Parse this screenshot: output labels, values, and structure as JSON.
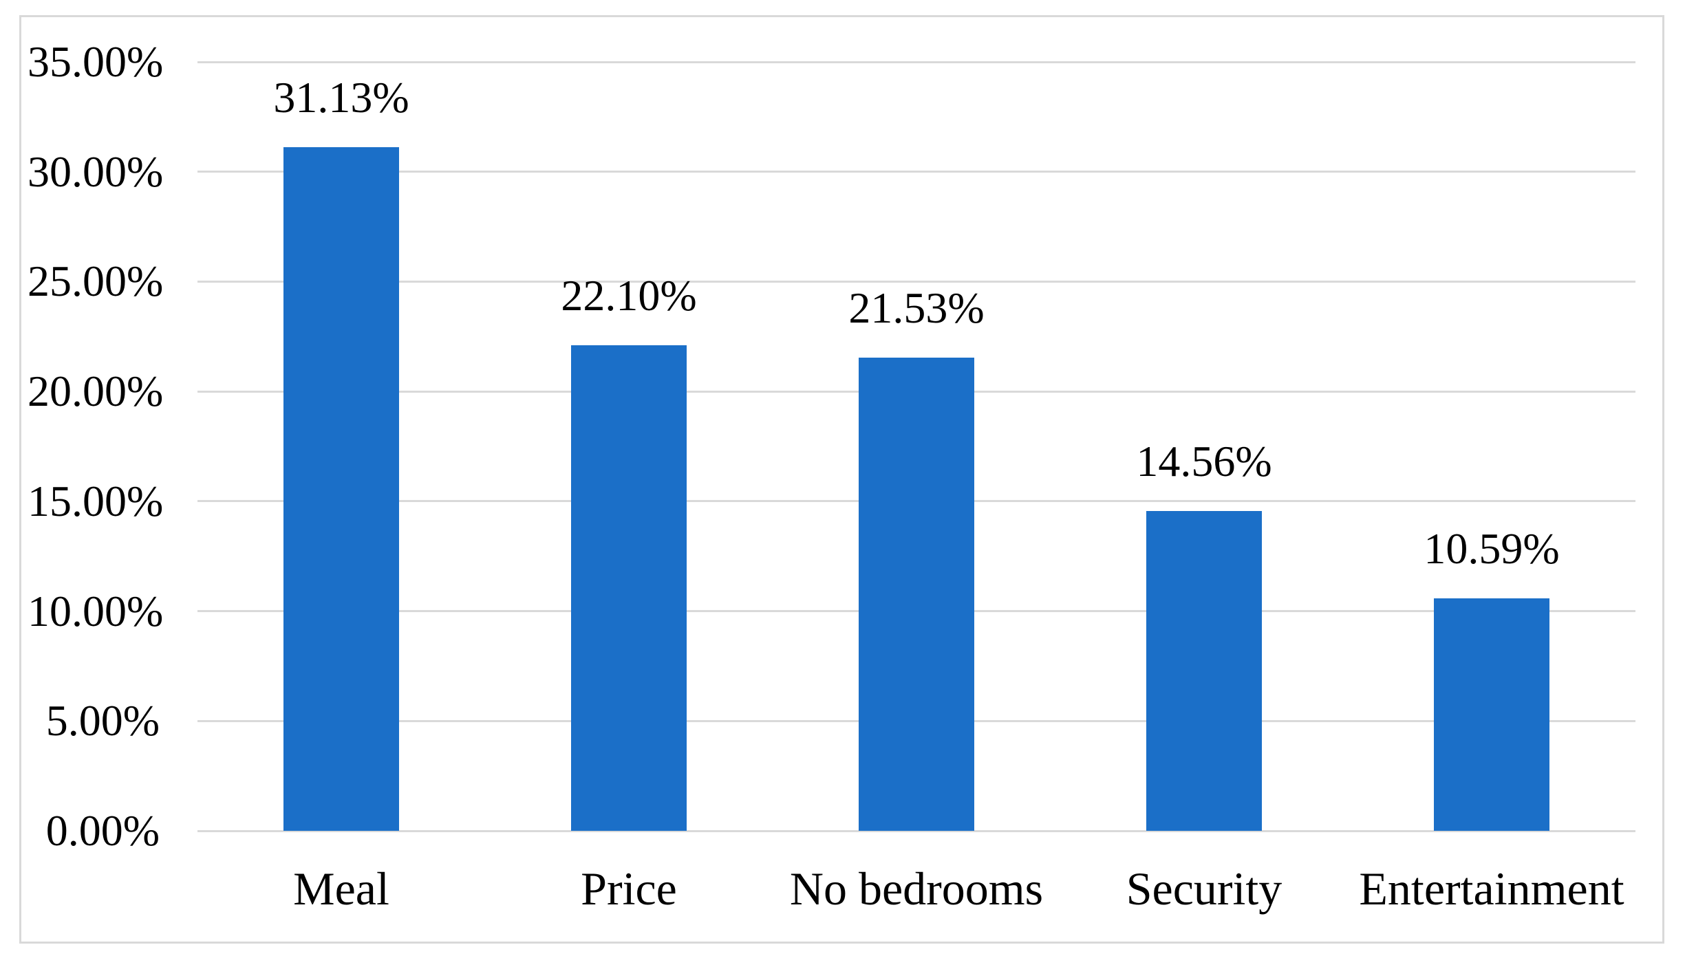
{
  "chart_data": {
    "type": "bar",
    "title": "",
    "xlabel": "",
    "ylabel": "",
    "categories": [
      "Meal",
      "Price",
      "No bedrooms",
      "Security",
      "Entertainment"
    ],
    "values": [
      31.13,
      22.1,
      21.53,
      14.56,
      10.59
    ],
    "data_labels": [
      "31.13%",
      "22.10%",
      "21.53%",
      "14.56%",
      "10.59%"
    ],
    "ylim": [
      0,
      35
    ],
    "ytick_step": 5,
    "ytick_labels": [
      "0.00%",
      "5.00%",
      "10.00%",
      "15.00%",
      "20.00%",
      "25.00%",
      "30.00%",
      "35.00%"
    ],
    "grid": true,
    "legend": false,
    "colors": {
      "bar": "#1b6fc8",
      "gridline": "#d9d9d9",
      "frame_border": "#d9d9d9",
      "text": "#000000",
      "background": "#ffffff"
    }
  }
}
